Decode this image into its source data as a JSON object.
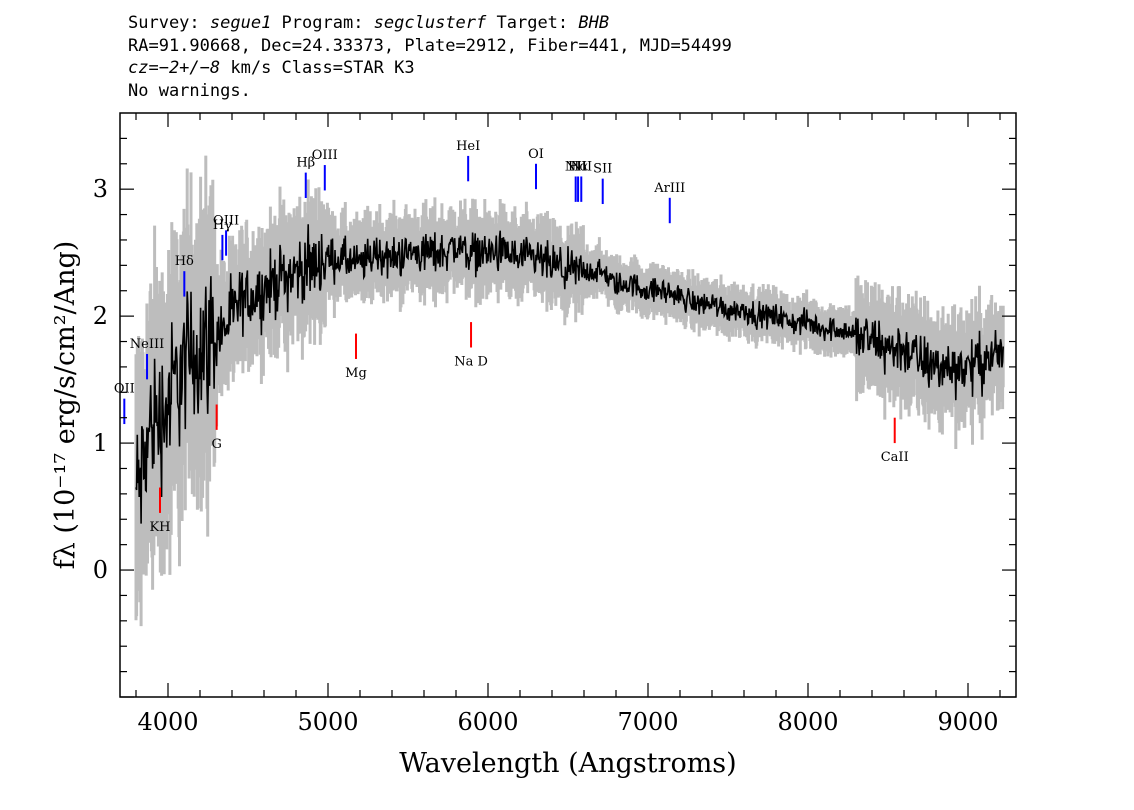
{
  "header": {
    "line1": {
      "survey_label": "Survey: ",
      "survey": "segue1",
      "program_label": " Program: ",
      "program": "segclusterf",
      "target_label": " Target: ",
      "target": "BHB"
    },
    "line2": "RA=91.90668, Dec=24.33373, Plate=2912, Fiber=441, MJD=54499",
    "line3": {
      "cz": "cz=−2+/−8",
      "rest": " km/s Class=STAR K3"
    },
    "line4": "No warnings."
  },
  "colors": {
    "flux": "#000000",
    "error_band": "#bdbdbd",
    "emission": "#0000ff",
    "absorption": "#ff0000"
  },
  "chart_data": {
    "type": "line",
    "title": "",
    "xlabel": "Wavelength (Angstroms)",
    "ylabel": "fλ (10⁻¹⁷ erg/s/cm²/Ang)",
    "xlim": [
      3700,
      9300
    ],
    "ylim": [
      -1.0,
      3.6
    ],
    "x_ticks": [
      4000,
      5000,
      6000,
      7000,
      8000,
      9000
    ],
    "x_tick_labels": [
      "4000",
      "5000",
      "6000",
      "7000",
      "8000",
      "9000"
    ],
    "y_ticks": [
      0,
      1,
      2,
      3
    ],
    "y_tick_labels": [
      "0",
      "1",
      "2",
      "3"
    ],
    "series": [
      {
        "role": "flux",
        "x": [
          3800,
          3850,
          3900,
          3950,
          4000,
          4050,
          4100,
          4150,
          4200,
          4250,
          4300,
          4350,
          4400,
          4450,
          4500,
          4600,
          4700,
          4800,
          4900,
          5000,
          5100,
          5200,
          5300,
          5400,
          5500,
          5600,
          5700,
          5800,
          5900,
          6000,
          6100,
          6200,
          6300,
          6400,
          6500,
          6600,
          6700,
          6800,
          6900,
          7000,
          7100,
          7200,
          7300,
          7400,
          7500,
          7600,
          7700,
          7800,
          7900,
          8000,
          8100,
          8200,
          8300,
          8400,
          8500,
          8600,
          8700,
          8800,
          8900,
          9000,
          9100,
          9200
        ],
        "y": [
          0.6,
          0.8,
          1.2,
          1.2,
          1.3,
          1.5,
          1.6,
          1.7,
          1.75,
          1.8,
          1.85,
          1.9,
          2.0,
          2.1,
          2.15,
          2.2,
          2.3,
          2.35,
          2.4,
          2.45,
          2.45,
          2.4,
          2.5,
          2.45,
          2.5,
          2.5,
          2.5,
          2.55,
          2.5,
          2.5,
          2.5,
          2.45,
          2.45,
          2.4,
          2.35,
          2.35,
          2.35,
          2.25,
          2.25,
          2.2,
          2.2,
          2.15,
          2.1,
          2.1,
          2.05,
          2.05,
          2.0,
          2.0,
          1.95,
          1.95,
          1.9,
          1.9,
          1.85,
          1.8,
          1.75,
          1.75,
          1.65,
          1.6,
          1.6,
          1.6,
          1.65,
          1.7
        ]
      }
    ],
    "spectral_lines": [
      {
        "label": "OII",
        "x": 3727,
        "type": "emission"
      },
      {
        "label": "NeIII",
        "x": 3869,
        "type": "emission"
      },
      {
        "label": "Hδ",
        "x": 4102,
        "type": "emission"
      },
      {
        "label": "Hγ",
        "x": 4340,
        "type": "emission"
      },
      {
        "label": "OIII",
        "x": 4363,
        "type": "emission"
      },
      {
        "label": "Hβ",
        "x": 4861,
        "type": "emission"
      },
      {
        "label": "OIII",
        "x": 4980,
        "type": "emission"
      },
      {
        "label": "HeI",
        "x": 5876,
        "type": "emission"
      },
      {
        "label": "OI",
        "x": 6300,
        "type": "emission"
      },
      {
        "label": "NII",
        "x": 6548,
        "type": "emission"
      },
      {
        "label": "Hα",
        "x": 6563,
        "type": "emission"
      },
      {
        "label": "NII",
        "x": 6583,
        "type": "emission"
      },
      {
        "label": "SII",
        "x": 6717,
        "type": "emission"
      },
      {
        "label": "ArIII",
        "x": 7136,
        "type": "emission"
      },
      {
        "label": "KH",
        "x": 3950,
        "type": "absorption"
      },
      {
        "label": "G",
        "x": 4304,
        "type": "absorption"
      },
      {
        "label": "Mg",
        "x": 5175,
        "type": "absorption"
      },
      {
        "label": "Na D",
        "x": 5894,
        "type": "absorption"
      },
      {
        "label": "CaII",
        "x": 8542,
        "type": "absorption"
      }
    ]
  }
}
